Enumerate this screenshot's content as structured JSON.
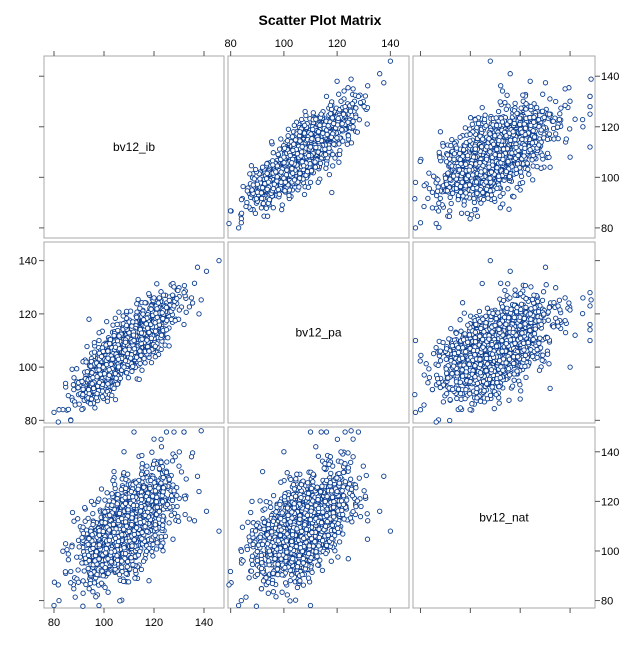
{
  "title": "Scatter Plot Matrix",
  "colors": {
    "marker": "#0b3d91",
    "panel_border": "#a8a8a8",
    "tick": "#555555",
    "background": "#ffffff"
  },
  "chart_data": {
    "type": "scatter",
    "title": "Scatter Plot Matrix",
    "variables": [
      "bv12_ib",
      "bv12_pa",
      "bv12_nat"
    ],
    "diagonal_labels": [
      "bv12_ib",
      "bv12_pa",
      "bv12_nat"
    ],
    "axes": {
      "bv12_ib": {
        "range": [
          76,
          148
        ],
        "ticks": [
          80,
          100,
          120,
          140
        ]
      },
      "bv12_pa": {
        "range": [
          79,
          147
        ],
        "ticks": [
          80,
          100,
          120,
          140
        ]
      },
      "bv12_nat": {
        "range": [
          77,
          150
        ],
        "ticks": [
          80,
          100,
          120,
          140
        ]
      }
    },
    "tick_labels": {
      "top_col2": [
        "80",
        "100",
        "120",
        "140"
      ],
      "right_row1": [
        "80",
        "100",
        "120",
        "140"
      ],
      "left_row2": [
        "80",
        "100",
        "120",
        "140"
      ],
      "right_row3": [
        "80",
        "100",
        "120",
        "140"
      ],
      "bottom_col1": [
        "80",
        "100",
        "120",
        "140"
      ]
    },
    "marker": "open-circle",
    "summary": {
      "n_points": 1500,
      "means": {
        "bv12_ib": 109,
        "bv12_pa": 107,
        "bv12_nat": 110
      },
      "sds": {
        "bv12_ib": 9,
        "bv12_pa": 9,
        "bv12_nat": 11
      },
      "correlations": {
        "bv12_ib~bv12_pa": 0.82,
        "bv12_ib~bv12_nat": 0.62,
        "bv12_pa~bv12_nat": 0.52
      }
    },
    "notable_points": [
      {
        "bv12_ib": 146,
        "bv12_pa": 140,
        "bv12_nat": 108
      },
      {
        "bv12_ib": 141,
        "bv12_pa": 136,
        "bv12_nat": 116
      },
      {
        "bv12_ib": 132,
        "bv12_pa": 128,
        "bv12_nat": 148
      },
      {
        "bv12_ib": 128,
        "bv12_pa": 123,
        "bv12_nat": 148
      },
      {
        "bv12_ib": 80,
        "bv12_pa": 83,
        "bv12_nat": 78
      },
      {
        "bv12_ib": 82,
        "bv12_pa": 84,
        "bv12_nat": 80
      },
      {
        "bv12_ib": 112,
        "bv12_pa": 110,
        "bv12_nat": 148
      },
      {
        "bv12_ib": 125,
        "bv12_pa": 114,
        "bv12_nat": 148
      },
      {
        "bv12_ib": 132,
        "bv12_pa": 116,
        "bv12_nat": 148
      },
      {
        "bv12_ib": 94,
        "bv12_pa": 118,
        "bv12_nat": 105
      },
      {
        "bv12_ib": 88,
        "bv12_pa": 96,
        "bv12_nat": 112
      },
      {
        "bv12_ib": 98,
        "bv12_pa": 110,
        "bv12_nat": 78
      },
      {
        "bv12_ib": 104,
        "bv12_pa": 92,
        "bv12_nat": 132
      },
      {
        "bv12_ib": 118,
        "bv12_pa": 106,
        "bv12_nat": 88
      },
      {
        "bv12_ib": 138,
        "bv12_pa": 120,
        "bv12_nat": 124
      },
      {
        "bv12_ib": 99,
        "bv12_pa": 104,
        "bv12_nat": 125
      },
      {
        "bv12_ib": 108,
        "bv12_pa": 100,
        "bv12_nat": 140
      },
      {
        "bv12_ib": 123,
        "bv12_pa": 112,
        "bv12_nat": 142
      },
      {
        "bv12_ib": 95,
        "bv12_pa": 88,
        "bv12_nat": 120
      },
      {
        "bv12_ib": 135,
        "bv12_pa": 126,
        "bv12_nat": 138
      }
    ]
  }
}
